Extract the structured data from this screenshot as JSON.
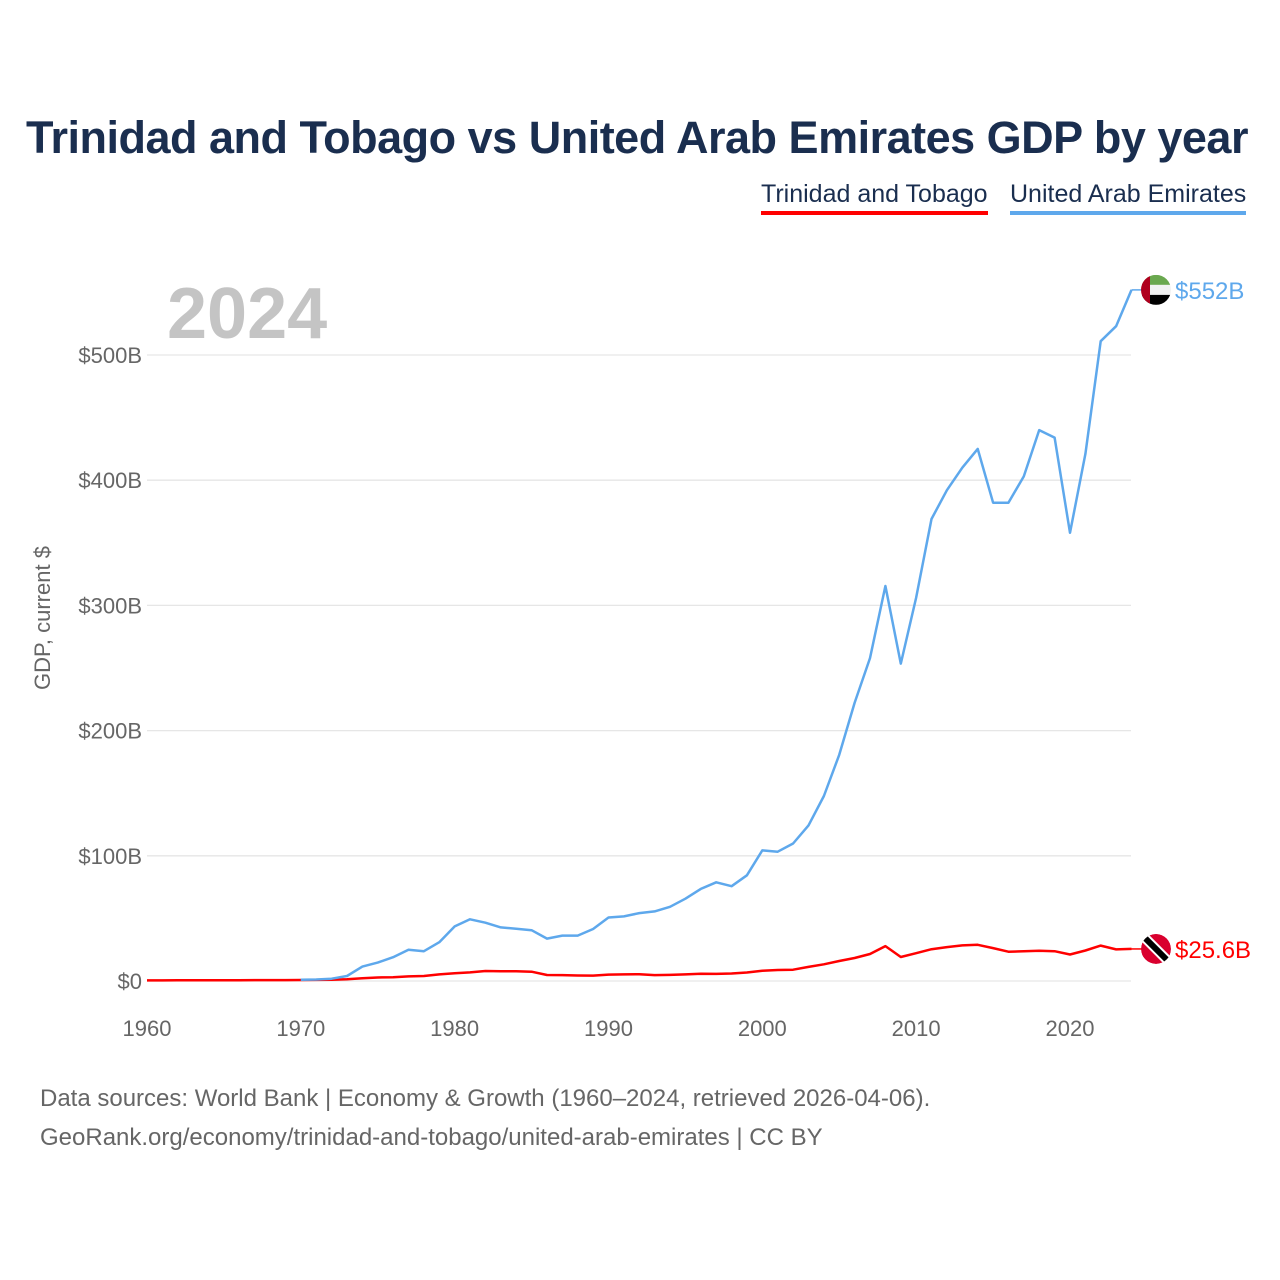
{
  "chart_data": {
    "type": "line",
    "title": "Trinidad and Tobago vs United Arab Emirates GDP by year",
    "ylabel": "GDP, current $",
    "xlabel": "",
    "year_label": "2024",
    "xlim": [
      1960,
      2024
    ],
    "ylim": [
      0,
      560
    ],
    "x_ticks": [
      1960,
      1970,
      1980,
      1990,
      2000,
      2010,
      2020
    ],
    "y_ticks": [
      0,
      100,
      200,
      300,
      400,
      500
    ],
    "y_tick_labels": [
      "$0",
      "$100B",
      "$200B",
      "$300B",
      "$400B",
      "$500B"
    ],
    "grid": true,
    "legend_position": "top-right",
    "series": [
      {
        "name": "Trinidad and Tobago",
        "color": "#ff0000",
        "end_label": "$25.6B",
        "flag": "trinidad-and-tobago-flag",
        "start_year": 1960,
        "values": [
          0.47,
          0.51,
          0.54,
          0.57,
          0.59,
          0.62,
          0.65,
          0.68,
          0.71,
          0.75,
          0.8,
          0.9,
          1.0,
          1.4,
          2.2,
          2.8,
          3.0,
          3.7,
          4.0,
          5.3,
          6.2,
          6.9,
          8.0,
          7.8,
          7.8,
          7.4,
          4.8,
          4.7,
          4.4,
          4.3,
          5.1,
          5.3,
          5.4,
          4.7,
          4.9,
          5.3,
          5.8,
          5.7,
          6.0,
          6.8,
          8.2,
          8.8,
          9.0,
          11.3,
          13.3,
          16.0,
          18.4,
          21.6,
          27.9,
          19.2,
          22.2,
          25.4,
          27.1,
          28.4,
          28.9,
          26.3,
          23.4,
          23.7,
          24.2,
          23.8,
          21.2,
          24.4,
          28.3,
          25.2,
          25.6
        ]
      },
      {
        "name": "United Arab Emirates",
        "color": "#5ea8ec",
        "end_label": "$552B",
        "flag": "uae-flag",
        "start_year": 1970,
        "values": [
          1.0,
          1.2,
          1.8,
          4.0,
          11.5,
          14.7,
          19.0,
          25.0,
          23.8,
          31.0,
          43.6,
          49.3,
          46.6,
          42.8,
          41.8,
          40.6,
          33.9,
          36.3,
          36.3,
          41.5,
          50.7,
          51.6,
          54.2,
          55.6,
          59.3,
          65.7,
          73.6,
          78.8,
          75.7,
          84.4,
          104.3,
          103.3,
          109.8,
          124.3,
          147.8,
          180.6,
          222.1,
          257.9,
          315.5,
          253.5,
          306.0,
          369.0,
          392.0,
          410.0,
          425.0,
          382.0,
          382.0,
          403.0,
          440.0,
          434.0,
          358.0,
          421.0,
          511.0,
          523.0,
          552.0
        ]
      }
    ]
  },
  "footer": {
    "line1": "Data sources: World Bank | Economy & Growth (1960–2024, retrieved 2026-04-06).",
    "line2": "GeoRank.org/economy/trinidad-and-tobago/united-arab-emirates | CC BY"
  }
}
